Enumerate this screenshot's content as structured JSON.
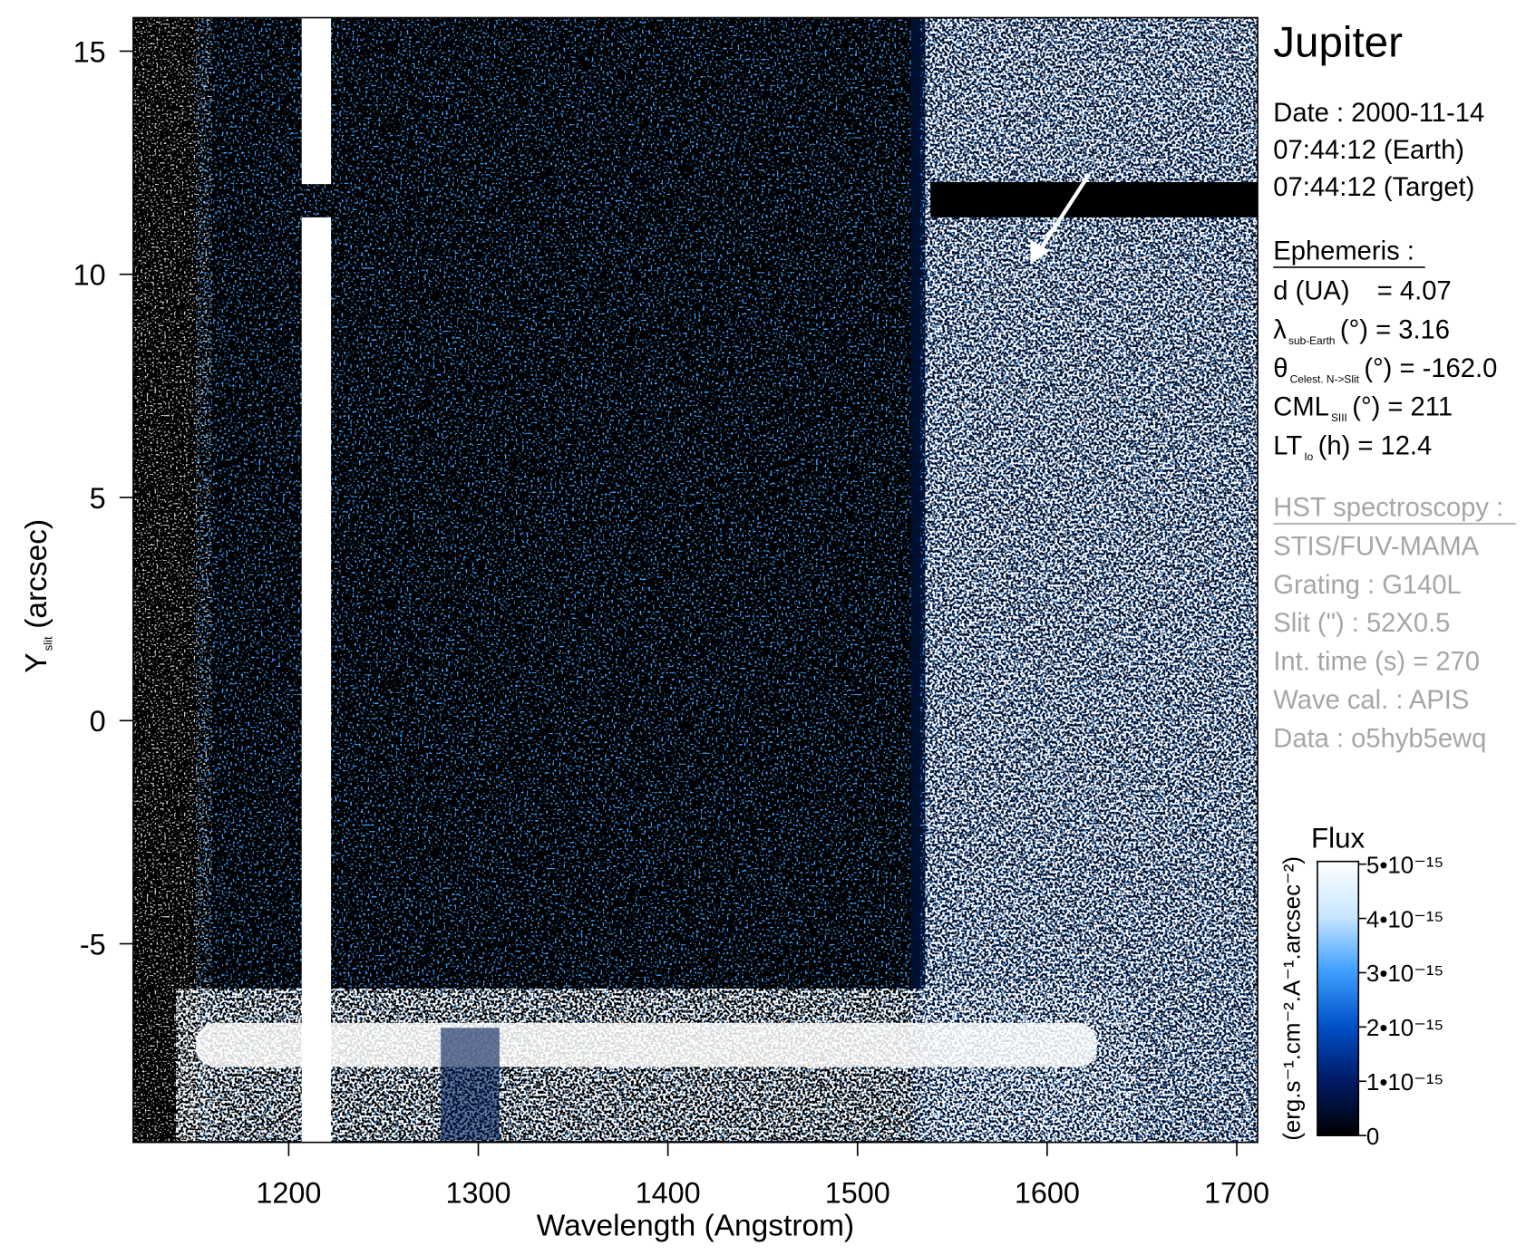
{
  "chart_data": {
    "type": "spectrogram",
    "x_label": "Wavelength (Angstrom)",
    "y_label": {
      "symbol": "Y",
      "sub": "slit",
      "unit": "(arcsec)"
    },
    "xlim": [
      1118,
      1711
    ],
    "xticks": [
      1200,
      1300,
      1400,
      1500,
      1600,
      1700
    ],
    "ylim": [
      -9.45,
      15.75
    ],
    "yticks": [
      -5,
      0,
      5,
      10,
      15
    ],
    "colorbar": {
      "title": "Flux",
      "label": "(erg.s⁻¹.cm⁻².A⁻¹.arcsec⁻²)",
      "lim": [
        0,
        5.05e-15
      ],
      "ticks": [
        0,
        {
          "value": 1e-15,
          "label": "1•10⁻¹⁵"
        },
        {
          "value": 2e-15,
          "label": "2•10⁻¹⁵"
        },
        {
          "value": 3e-15,
          "label": "3•10⁻¹⁵"
        },
        {
          "value": 4e-15,
          "label": "4•10⁻¹⁵"
        },
        {
          "value": 5e-15,
          "label": "5•10⁻¹⁵"
        }
      ],
      "colors": [
        "#000000",
        "#001a66",
        "#0050c8",
        "#3fa0ff",
        "#c8e6ff",
        "#ffffff"
      ]
    }
  },
  "info": {
    "title": "Jupiter",
    "date": [
      "Date : 2000-11-14",
      "07:44:12 (Earth)",
      "07:44:12 (Target)"
    ],
    "ephemeris": {
      "heading": "Ephemeris :",
      "rows": [
        {
          "symbol": "d (UA)",
          "rest": "= 4.07"
        },
        {
          "symbol": "λ",
          "sub": "sub-Earth",
          "rest": "(°)  = 3.16"
        },
        {
          "symbol": "θ",
          "sub": "Celest. N->Slit",
          "rest": "(°) = -162.0"
        },
        {
          "symbol": "CML",
          "sub": "SIII",
          "rest": "(°) = 211"
        },
        {
          "symbol": "LT",
          "sub": "Io",
          "rest": "(h) = 12.4"
        }
      ]
    },
    "observation": {
      "heading": "HST spectroscopy :",
      "lines": [
        "STIS/FUV-MAMA",
        "Grating : G140L",
        "Slit (\") : 52X0.5",
        "Int. time (s) = 270",
        "Wave cal. : APIS",
        "Data : o5hyb5ewq"
      ]
    }
  }
}
